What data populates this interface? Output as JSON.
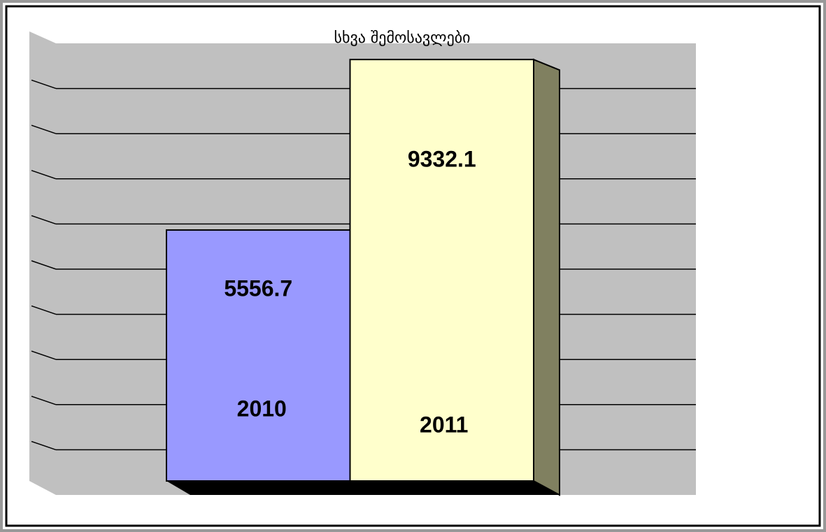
{
  "chart_data": {
    "type": "bar3d",
    "title": "სხვა შემოსავლები",
    "categories": [
      "2010",
      "2011"
    ],
    "values": [
      5556.7,
      9332.1
    ],
    "colors": [
      "#9999ff",
      "#ffffcc"
    ],
    "ylim": [
      0,
      10000
    ],
    "yticks": [
      1000,
      2000,
      3000,
      4000,
      5000,
      6000,
      7000,
      8000,
      9000
    ],
    "grid": true
  }
}
